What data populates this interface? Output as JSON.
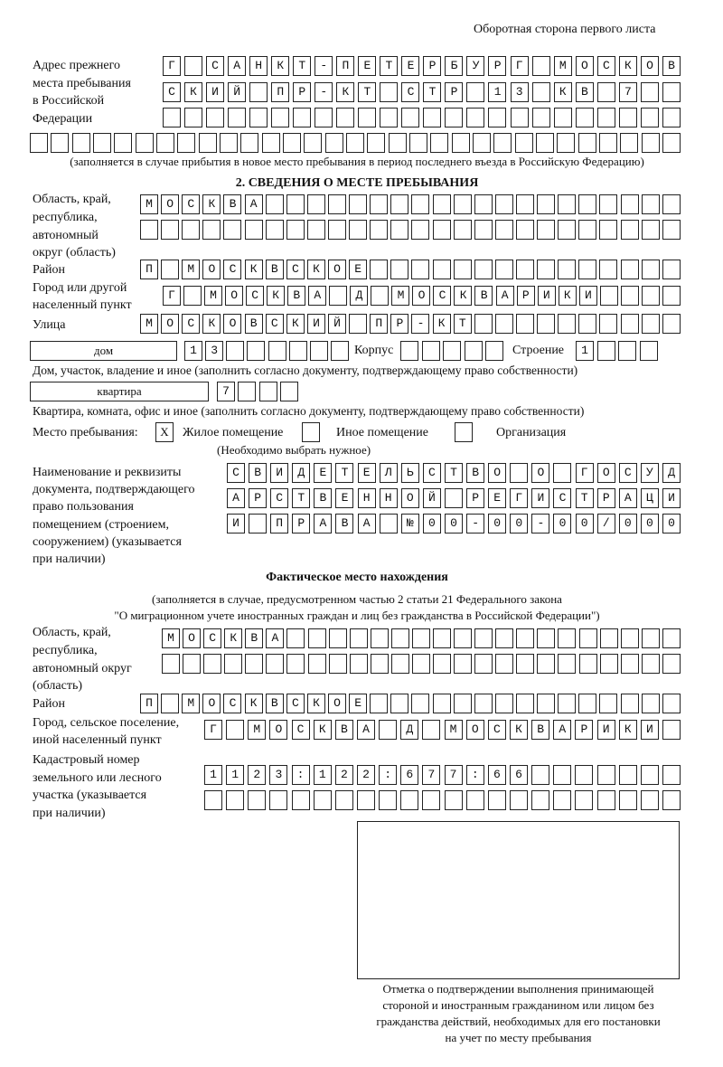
{
  "header": "Оборотная сторона первого листа",
  "prev_address": {
    "label": [
      "Адрес прежнего",
      "места пребывания",
      "в Российской",
      "Федерации"
    ],
    "rows": [
      "Г САНКТ-ПЕТЕРБУРГ МОСКОВ",
      "СКИЙ ПР-КТ СТР 13 КВ 7  ",
      "                        ",
      "                               "
    ],
    "note": "(заполняется в случае прибытия в новое место пребывания в период последнего въезда в Российскую Федерацию)"
  },
  "section2": {
    "title": "2. СВЕДЕНИЯ О МЕСТЕ ПРЕБЫВАНИЯ",
    "region": {
      "label": [
        "Область, край,",
        "республика,",
        "автономный",
        "округ (область)"
      ],
      "rows": [
        "МОСКВА                    ",
        "                          "
      ]
    },
    "district": {
      "label": "Район",
      "row": "П МОСКВСКОЕ               "
    },
    "city": {
      "label": [
        "Город или другой",
        "населенный пункт"
      ],
      "row": "Г МОСКВА Д МОСКВАРИКИ    "
    },
    "street": {
      "label": "Улица",
      "row": "МОСКОВСКИЙ ПР-КТ          "
    },
    "house": {
      "type": "дом",
      "number": "13      ",
      "korpus_label": "Корпус",
      "korpus": "     ",
      "building_label": "Строение",
      "building": "1   ",
      "note": "Дом, участок, владение и иное (заполнить согласно документу, подтверждающему право собственности)"
    },
    "flat": {
      "type": "квартира",
      "number": "7   ",
      "note": "Квартира, комната, офис и иное (заполнить согласно документу, подтверждающему право собственности)"
    },
    "stay_place": {
      "label": "Место пребывания:",
      "options": [
        {
          "label": "Жилое помещение",
          "checked": true,
          "mark": "X"
        },
        {
          "label": "Иное помещение",
          "checked": false,
          "mark": ""
        },
        {
          "label": "Организация",
          "checked": false,
          "mark": ""
        }
      ],
      "note": "(Необходимо выбрать нужное)"
    },
    "document": {
      "label": [
        "Наименование и реквизиты",
        "документа, подтверждающего",
        "право пользования",
        "помещением (строением,",
        "сооружением) (указывается",
        "при наличии)"
      ],
      "rows": [
        "СВИДЕТЕЛЬСТВО О ГОСУД",
        "АРСТВЕННОЙ РЕГИСТРАЦИ",
        "И ПРАВА №00-00-00/000"
      ]
    }
  },
  "actual": {
    "title": "Фактическое место нахождения",
    "note": [
      "(заполняется в случае, предусмотренном частью 2 статьи 21 Федерального закона",
      "\"О миграционном учете иностранных граждан и лиц без гражданства в Российской Федерации\")"
    ],
    "region": {
      "label": [
        "Область, край,",
        "республика,",
        "автономный округ",
        "(область)"
      ],
      "rows": [
        "МОСКВА                   ",
        "                         "
      ]
    },
    "district": {
      "label": "Район",
      "row": "П МОСКВСКОЕ               "
    },
    "city": {
      "label": [
        "Город, сельское поселение,",
        "иной населенный пункт"
      ],
      "row": "Г МОСКВА Д МОСКВАРИКИ "
    },
    "cadastral": {
      "label": [
        "Кадастровый номер",
        "земельного или лесного",
        "участка (указывается",
        "при наличии)"
      ],
      "rows": [
        "1123:122:677:66       ",
        "                      "
      ]
    }
  },
  "confirmation": {
    "note": [
      "Отметка о подтверждении выполнения принимающей",
      "стороной и иностранным гражданином или лицом без",
      "гражданства действий, необходимых для его постановки",
      "на учет по месту пребывания"
    ]
  }
}
